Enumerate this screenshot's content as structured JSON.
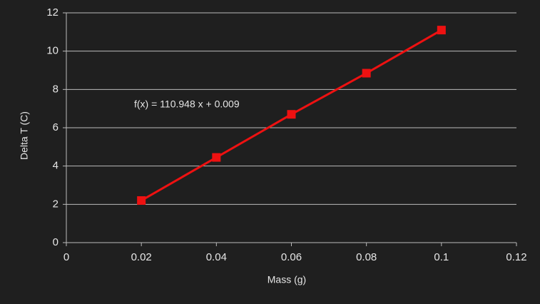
{
  "chart_data": {
    "type": "line",
    "x": [
      0.02,
      0.04,
      0.06,
      0.08,
      0.1
    ],
    "values": [
      2.2,
      4.45,
      6.7,
      8.85,
      11.1
    ],
    "color": "#ee1111",
    "xlabel": "Mass (g)",
    "ylabel": "Delta T (C)",
    "annotation": "f(x) = 110.948 x + 0.009",
    "xlim": [
      0,
      0.12
    ],
    "xticks": [
      0,
      0.02,
      0.04,
      0.06,
      0.08,
      0.1,
      0.12
    ],
    "ylim": [
      0,
      12
    ],
    "yticks": [
      0,
      2,
      4,
      6,
      8,
      10,
      12
    ],
    "grid": true,
    "markers": true
  }
}
